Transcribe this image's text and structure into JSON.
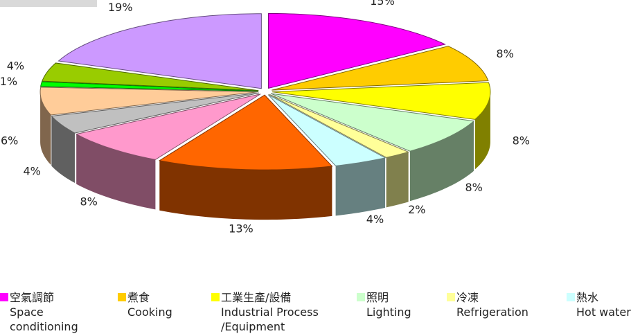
{
  "chart_data": {
    "type": "pie3d",
    "categories": [
      "空氣調節\nSpace\nconditioning",
      "煮食\nCooking",
      "工業生產/設備\nIndustrial Process\n/Equipment",
      "照明\nLighting",
      "冷凍\nRefrigeration",
      "熱水\nHot water",
      null,
      null,
      null,
      null,
      null,
      null,
      null
    ],
    "values": [
      15,
      8,
      8,
      8,
      2,
      4,
      13,
      8,
      4,
      6,
      1,
      4,
      19
    ],
    "value_labels": [
      "15%",
      "8%",
      "8%",
      "8%",
      "2%",
      "4%",
      "13%",
      "8%",
      "4%",
      "6%",
      "1%",
      "4%",
      "19%"
    ],
    "colors": [
      "#ff00ff",
      "#ffcc00",
      "#ffff00",
      "#ccffcc",
      "#ffff99",
      "#ccffff",
      "#ff6600",
      "#ff99cc",
      "#c0c0c0",
      "#ffcc99",
      "#00ff00",
      "#99cc00",
      "#cc99ff"
    ]
  }
}
